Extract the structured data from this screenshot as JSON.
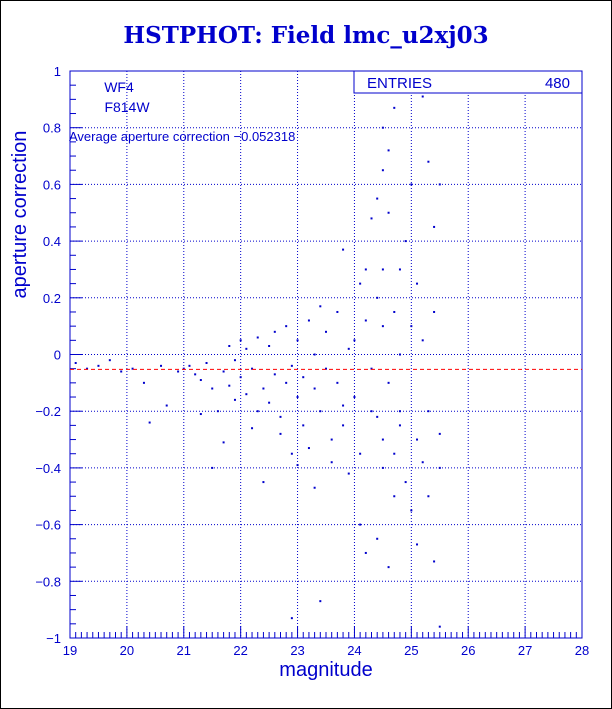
{
  "chart_data": {
    "type": "scatter",
    "title": "HSTPHOT: Field lmc_u2xj03",
    "xlabel": "magnitude",
    "ylabel": "aperture correction",
    "xlim": [
      19,
      28
    ],
    "ylim": [
      -1,
      1
    ],
    "x_ticks": [
      "19",
      "20",
      "21",
      "22",
      "23",
      "24",
      "25",
      "26",
      "27",
      "28"
    ],
    "y_ticks": [
      "−1",
      "−0.8",
      "−0.6",
      "−0.4",
      "−0.2",
      "0",
      "0.2",
      "0.4",
      "0.6",
      "0.8",
      "1"
    ],
    "grid": true,
    "annotations": {
      "chip": "WF4",
      "filter": "F814W",
      "average_text": "Average aperture correction −0.052318"
    },
    "stats_box": {
      "label": "ENTRIES",
      "value": "480"
    },
    "reference_line": {
      "y": -0.052318,
      "style": "dashed",
      "color": "#ff0000"
    },
    "point_color": "#0000cc",
    "points": [
      [
        19.1,
        -0.03
      ],
      [
        19.3,
        -0.05
      ],
      [
        19.5,
        -0.04
      ],
      [
        19.7,
        -0.02
      ],
      [
        19.9,
        -0.06
      ],
      [
        20.1,
        -0.05
      ],
      [
        20.3,
        -0.1
      ],
      [
        20.4,
        -0.24
      ],
      [
        20.6,
        -0.04
      ],
      [
        20.7,
        -0.18
      ],
      [
        20.9,
        -0.06
      ],
      [
        21.0,
        -0.05
      ],
      [
        21.1,
        -0.04
      ],
      [
        21.2,
        -0.07
      ],
      [
        21.3,
        -0.09
      ],
      [
        21.3,
        -0.21
      ],
      [
        21.4,
        -0.03
      ],
      [
        21.5,
        -0.12
      ],
      [
        21.5,
        -0.4
      ],
      [
        21.6,
        -0.2
      ],
      [
        21.7,
        -0.06
      ],
      [
        21.7,
        -0.31
      ],
      [
        21.8,
        0.03
      ],
      [
        21.8,
        -0.11
      ],
      [
        21.9,
        -0.02
      ],
      [
        21.9,
        -0.16
      ],
      [
        22.0,
        0.05
      ],
      [
        22.0,
        -0.08
      ],
      [
        22.1,
        -0.14
      ],
      [
        22.1,
        0.02
      ],
      [
        22.2,
        -0.26
      ],
      [
        22.2,
        -0.05
      ],
      [
        22.3,
        0.06
      ],
      [
        22.3,
        -0.2
      ],
      [
        22.4,
        -0.12
      ],
      [
        22.4,
        -0.45
      ],
      [
        22.5,
        0.03
      ],
      [
        22.5,
        -0.17
      ],
      [
        22.6,
        -0.07
      ],
      [
        22.6,
        0.08
      ],
      [
        22.7,
        -0.22
      ],
      [
        22.7,
        -0.28
      ],
      [
        22.8,
        -0.1
      ],
      [
        22.8,
        0.1
      ],
      [
        22.9,
        -0.04
      ],
      [
        22.9,
        -0.35
      ],
      [
        22.9,
        -0.93
      ],
      [
        23.0,
        -0.15
      ],
      [
        23.0,
        -0.39
      ],
      [
        23.0,
        0.05
      ],
      [
        23.1,
        -0.25
      ],
      [
        23.1,
        -0.08
      ],
      [
        23.2,
        0.12
      ],
      [
        23.2,
        -0.33
      ],
      [
        23.3,
        -0.12
      ],
      [
        23.3,
        0.0
      ],
      [
        23.3,
        -0.47
      ],
      [
        23.4,
        0.17
      ],
      [
        23.4,
        -0.87
      ],
      [
        23.4,
        -0.2
      ],
      [
        23.5,
        -0.05
      ],
      [
        23.5,
        0.08
      ],
      [
        23.6,
        -0.3
      ],
      [
        23.6,
        -0.38
      ],
      [
        23.7,
        -0.1
      ],
      [
        23.7,
        0.15
      ],
      [
        23.8,
        -0.25
      ],
      [
        23.8,
        0.37
      ],
      [
        23.8,
        -0.18
      ],
      [
        23.9,
        -0.42
      ],
      [
        23.9,
        0.02
      ],
      [
        24.0,
        -0.15
      ],
      [
        24.0,
        0.05
      ],
      [
        24.1,
        0.25
      ],
      [
        24.1,
        -0.6
      ],
      [
        24.1,
        -0.35
      ],
      [
        24.2,
        0.3
      ],
      [
        24.2,
        -0.7
      ],
      [
        24.2,
        0.12
      ],
      [
        24.3,
        -0.05
      ],
      [
        24.3,
        -0.2
      ],
      [
        24.3,
        0.48
      ],
      [
        24.4,
        0.2
      ],
      [
        24.4,
        -0.22
      ],
      [
        24.4,
        -0.65
      ],
      [
        24.4,
        0.55
      ],
      [
        24.5,
        -0.3
      ],
      [
        24.5,
        0.1
      ],
      [
        24.5,
        0.3
      ],
      [
        24.5,
        -0.4
      ],
      [
        24.5,
        0.65
      ],
      [
        24.5,
        0.8
      ],
      [
        24.6,
        -0.1
      ],
      [
        24.6,
        0.5
      ],
      [
        24.6,
        -0.75
      ],
      [
        24.6,
        0.72
      ],
      [
        24.7,
        0.87
      ],
      [
        24.7,
        -0.35
      ],
      [
        24.7,
        0.15
      ],
      [
        24.7,
        -0.5
      ],
      [
        24.8,
        0.0
      ],
      [
        24.8,
        -0.25
      ],
      [
        24.8,
        0.3
      ],
      [
        24.8,
        -0.2
      ],
      [
        24.9,
        0.4
      ],
      [
        24.9,
        -0.45
      ],
      [
        25.0,
        0.6
      ],
      [
        25.0,
        -0.55
      ],
      [
        25.0,
        0.1
      ],
      [
        25.1,
        -0.67
      ],
      [
        25.1,
        -0.3
      ],
      [
        25.1,
        0.25
      ],
      [
        25.2,
        0.91
      ],
      [
        25.2,
        -0.38
      ],
      [
        25.2,
        0.05
      ],
      [
        25.3,
        -0.2
      ],
      [
        25.3,
        0.68
      ],
      [
        25.3,
        -0.5
      ],
      [
        25.4,
        0.45
      ],
      [
        25.4,
        -0.73
      ],
      [
        25.4,
        0.15
      ],
      [
        25.5,
        0.6
      ],
      [
        25.5,
        -0.28
      ],
      [
        25.5,
        -0.96
      ],
      [
        25.5,
        -0.4
      ]
    ]
  }
}
